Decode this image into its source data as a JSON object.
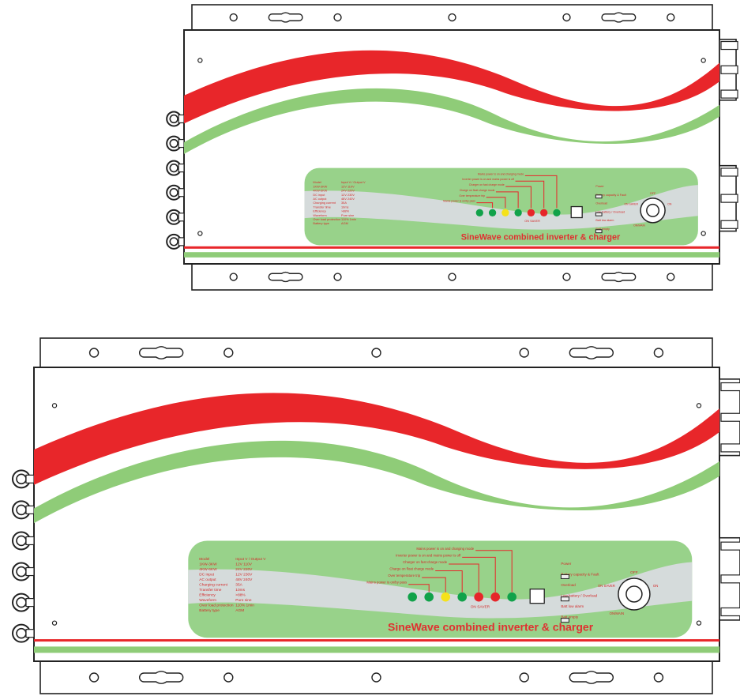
{
  "colors": {
    "red": "#e8262a",
    "green": "#8fcc78",
    "panel": "#98d28a",
    "panel_gray": "#d5dbdb",
    "led_green": "#11a24a",
    "led_yellow": "#f5e21a",
    "led_red": "#e6262a",
    "outline": "#222222"
  },
  "units": [
    {
      "brand": "SineWave combined inverter & charger",
      "onoff_label": "ON  SAVER",
      "switch_top": "OFF",
      "switch_left": "ON  SAVER",
      "switch_right": "ON",
      "switch_bottom": "ON/MAIN",
      "callouts": [
        "Mains power is on/by pass",
        "Over temperature trip",
        "Charge on float charge mode",
        "Charger on fast charge mode",
        "Inverter power is on and mains power is off",
        "Mains power is on and charging mode"
      ],
      "leds": [
        "led_green",
        "led_green",
        "led_yellow",
        "led_green",
        "led_red",
        "led_red",
        "led_green"
      ],
      "specs": [
        [
          "Model",
          "Input V / Output V"
        ],
        [
          "1KW-3KW",
          "12V   110V"
        ],
        [
          "4KW-6KW",
          "24V   220V"
        ],
        [
          "DC input",
          "12V   230V"
        ],
        [
          "AC output",
          "48V   240V"
        ],
        [
          "Charging current",
          "35A"
        ],
        [
          "Transfer time",
          "10ms"
        ],
        [
          "Efficiency",
          ">88%"
        ],
        [
          "Waveform",
          "Pure sine"
        ],
        [
          "Over load protection",
          "110%  1min"
        ],
        [
          "Battery type",
          "AGM"
        ]
      ],
      "side_labels": [
        "Power",
        "Battery capacity & Fault",
        "Overload",
        "Low battery / Overload",
        "Batt low alarm",
        "Batt empty"
      ]
    },
    {
      "brand": "SineWave combined inverter & charger",
      "onoff_label": "ON  SAVER",
      "switch_top": "OFF",
      "switch_left": "ON  SAVER",
      "switch_right": "ON",
      "switch_bottom": "ON/MAIN",
      "callouts": [
        "Mains power is on/by pass",
        "Over temperature trip",
        "Charge on float charge mode",
        "Charger on fast charge mode",
        "Inverter power is on and mains power is off",
        "Mains power is on and charging mode"
      ],
      "leds": [
        "led_green",
        "led_green",
        "led_yellow",
        "led_green",
        "led_red",
        "led_red",
        "led_green"
      ],
      "specs": [
        [
          "Model",
          "Input V / Output V"
        ],
        [
          "1KW-3KW",
          "12V   110V"
        ],
        [
          "4KW-6KW",
          "24V   220V"
        ],
        [
          "DC input",
          "12V   230V"
        ],
        [
          "AC output",
          "48V   240V"
        ],
        [
          "Charging current",
          "35A"
        ],
        [
          "Transfer time",
          "10ms"
        ],
        [
          "Efficiency",
          ">88%"
        ],
        [
          "Waveform",
          "Pure sine"
        ],
        [
          "Over load protection",
          "110%  1min"
        ],
        [
          "Battery type",
          "AGM"
        ]
      ],
      "side_labels": [
        "Power",
        "Battery capacity & Fault",
        "Overload",
        "Low battery / Overload",
        "Batt low alarm",
        "Batt empty"
      ]
    }
  ]
}
